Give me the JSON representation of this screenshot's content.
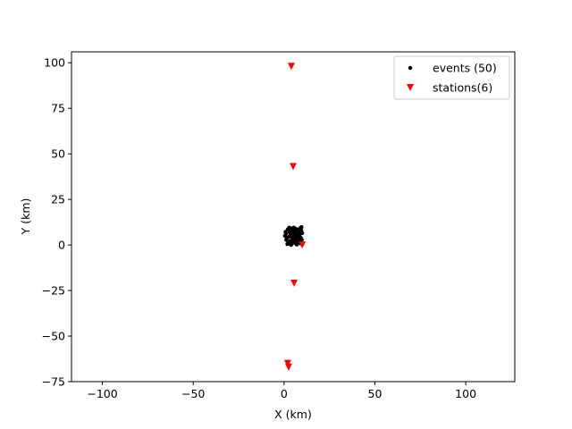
{
  "chart_data": {
    "type": "scatter",
    "xlabel": "X (km)",
    "ylabel": "Y (km)",
    "xlim": [
      -117,
      127
    ],
    "ylim": [
      -75,
      106
    ],
    "x_ticks": [
      -100,
      -50,
      0,
      50,
      100
    ],
    "y_ticks": [
      -75,
      -50,
      -25,
      0,
      25,
      50,
      75,
      100
    ],
    "x_tick_labels": [
      "−100",
      "−50",
      "0",
      "50",
      "100"
    ],
    "y_tick_labels": [
      "−75",
      "−50",
      "−25",
      "0",
      "25",
      "50",
      "75",
      "100"
    ],
    "grid": false,
    "legend_position": "top-right",
    "series": [
      {
        "name": "events (50)",
        "marker": "dot",
        "color": "#000000",
        "points": [
          [
            0.5,
            5.0
          ],
          [
            1.0,
            6.2
          ],
          [
            1.5,
            3.8
          ],
          [
            2.0,
            8.5
          ],
          [
            2.2,
            1.0
          ],
          [
            2.5,
            4.5
          ],
          [
            3.0,
            7.0
          ],
          [
            3.2,
            2.2
          ],
          [
            3.5,
            5.5
          ],
          [
            4.0,
            9.0
          ],
          [
            4.2,
            0.5
          ],
          [
            4.5,
            6.5
          ],
          [
            4.8,
            3.0
          ],
          [
            5.0,
            8.0
          ],
          [
            5.2,
            5.0
          ],
          [
            5.5,
            1.5
          ],
          [
            5.8,
            7.5
          ],
          [
            6.0,
            4.0
          ],
          [
            6.2,
            9.0
          ],
          [
            6.5,
            2.5
          ],
          [
            6.8,
            6.0
          ],
          [
            7.0,
            0.2
          ],
          [
            7.2,
            8.5
          ],
          [
            7.5,
            4.5
          ],
          [
            7.8,
            3.5
          ],
          [
            8.0,
            7.0
          ],
          [
            8.2,
            1.8
          ],
          [
            8.5,
            5.5
          ],
          [
            8.8,
            9.2
          ],
          [
            9.0,
            0.8
          ],
          [
            9.2,
            4.0
          ],
          [
            9.5,
            8.0
          ],
          [
            9.8,
            2.8
          ],
          [
            10.0,
            6.5
          ],
          [
            1.2,
            2.8
          ],
          [
            2.8,
            9.5
          ],
          [
            3.8,
            0.0
          ],
          [
            4.4,
            4.2
          ],
          [
            5.6,
            6.8
          ],
          [
            6.6,
            5.2
          ],
          [
            7.6,
            2.0
          ],
          [
            8.6,
            3.2
          ],
          [
            9.6,
            9.8
          ],
          [
            0.8,
            7.2
          ],
          [
            1.8,
            0.5
          ],
          [
            3.4,
            8.0
          ],
          [
            4.6,
            1.2
          ],
          [
            5.4,
            9.5
          ],
          [
            6.4,
            0.8
          ],
          [
            7.4,
            6.2
          ]
        ]
      },
      {
        "name": "stations(6)",
        "marker": "triangle-down",
        "color": "#ff0000",
        "points": [
          [
            4,
            98
          ],
          [
            5,
            43
          ],
          [
            10,
            0
          ],
          [
            5.5,
            -21
          ],
          [
            2,
            -65
          ],
          [
            2.5,
            -67
          ]
        ]
      }
    ]
  }
}
